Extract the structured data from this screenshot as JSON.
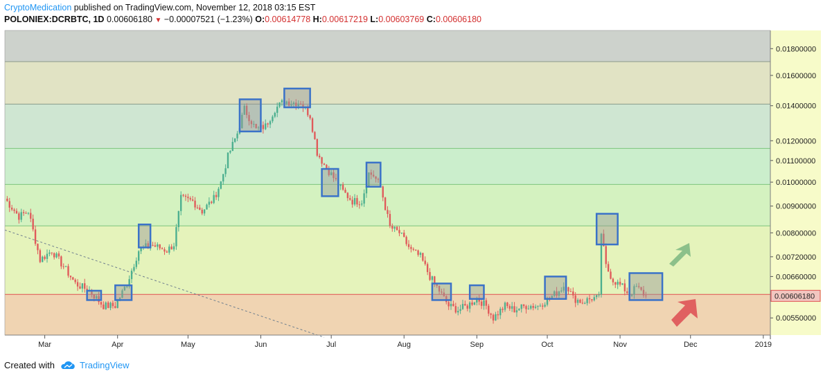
{
  "header": {
    "author": "CryptoMedication",
    "published_text": " published on TradingView.com, November 12, 2018 03:15 EST",
    "symbol": "POLONIEX:DCRBTC, 1D",
    "last": "0.00606180",
    "change": "−0.00007521 (−1.23%)",
    "o_label": "O:",
    "o_value": "0.00614778",
    "h_label": "H:",
    "h_value": "0.00617219",
    "l_label": "L:",
    "l_value": "0.00603769",
    "c_label": "C:",
    "c_value": "0.00606180"
  },
  "footer": {
    "created_with": "Created with",
    "brand": "TradingView"
  },
  "colors": {
    "up": "#4caf8f",
    "down": "#e05a5a",
    "box_stroke": "#3a72c8",
    "current_line": "#e05050",
    "arrow_up": "#8cc08a",
    "arrow_down": "#e06060",
    "axis_bg": "#f7fbc9"
  },
  "chart_data": {
    "type": "candlestick",
    "title": "",
    "y_scale": "log",
    "ylim": [
      0.0051,
      0.0195
    ],
    "y_ticks": [
      "0.01800000",
      "0.01600000",
      "0.01400000",
      "0.01200000",
      "0.01100000",
      "0.01000000",
      "0.00900000",
      "0.00800000",
      "0.00720000",
      "0.00660000",
      "0.00550000"
    ],
    "y_tick_values": [
      0.018,
      0.016,
      0.014,
      0.012,
      0.011,
      0.01,
      0.009,
      0.008,
      0.0072,
      0.0066,
      0.0055
    ],
    "x_ticks": [
      "Mar",
      "Apr",
      "May",
      "Jun",
      "Jul",
      "Aug",
      "Sep",
      "Oct",
      "Nov",
      "Dec",
      "2019"
    ],
    "x_tick_dates": [
      "2018-03-01",
      "2018-04-01",
      "2018-05-01",
      "2018-06-01",
      "2018-07-01",
      "2018-08-01",
      "2018-09-01",
      "2018-10-01",
      "2018-11-01",
      "2018-12-01",
      "2019-01-01"
    ],
    "x_range": [
      "2018-02-12",
      "2019-01-04"
    ],
    "current_price": 0.0060618,
    "current_price_label": "0.00606180",
    "fib_levels": [
      0.017,
      0.0141,
      0.0116,
      0.0099,
      0.00825,
      0.0061
    ],
    "zone_colors": [
      "#cdd2cc",
      "#e1e3c4",
      "#cfe6d2",
      "#cbeecc",
      "#d4f2c0",
      "#e5f3bb",
      "#f0d4b2"
    ],
    "trendline": {
      "start": [
        "2018-02-12",
        0.0081
      ],
      "end": [
        "2018-06-28",
        0.00505
      ]
    },
    "series": [
      {
        "ohlc_anchors": [
          [
            "2018-02-12",
            0.0093
          ],
          [
            "2018-02-18",
            0.0086
          ],
          [
            "2018-02-22",
            0.0088
          ],
          [
            "2018-02-27",
            0.0071
          ],
          [
            "2018-03-04",
            0.0074
          ],
          [
            "2018-03-10",
            0.0068
          ],
          [
            "2018-03-14",
            0.0064
          ],
          [
            "2018-03-20",
            0.0062
          ],
          [
            "2018-03-26",
            0.0058
          ],
          [
            "2018-03-31",
            0.0058
          ],
          [
            "2018-04-05",
            0.0064
          ],
          [
            "2018-04-10",
            0.0074
          ],
          [
            "2018-04-15",
            0.0076
          ],
          [
            "2018-04-22",
            0.0074
          ],
          [
            "2018-04-25",
            0.0076
          ],
          [
            "2018-04-28",
            0.0093
          ],
          [
            "2018-05-03",
            0.0092
          ],
          [
            "2018-05-07",
            0.0088
          ],
          [
            "2018-05-12",
            0.0093
          ],
          [
            "2018-05-15",
            0.01
          ],
          [
            "2018-05-18",
            0.0112
          ],
          [
            "2018-05-22",
            0.0124
          ],
          [
            "2018-05-25",
            0.0138
          ],
          [
            "2018-05-30",
            0.0126
          ],
          [
            "2018-06-03",
            0.0128
          ],
          [
            "2018-06-07",
            0.0138
          ],
          [
            "2018-06-11",
            0.0143
          ],
          [
            "2018-06-14",
            0.0142
          ],
          [
            "2018-06-18",
            0.0142
          ],
          [
            "2018-06-22",
            0.0134
          ],
          [
            "2018-06-25",
            0.0114
          ],
          [
            "2018-06-28",
            0.0108
          ],
          [
            "2018-07-02",
            0.0102
          ],
          [
            "2018-07-06",
            0.0096
          ],
          [
            "2018-07-10",
            0.0092
          ],
          [
            "2018-07-14",
            0.0092
          ],
          [
            "2018-07-17",
            0.0104
          ],
          [
            "2018-07-19",
            0.0103
          ],
          [
            "2018-07-22",
            0.0098
          ],
          [
            "2018-07-26",
            0.0082
          ],
          [
            "2018-07-30",
            0.008
          ],
          [
            "2018-08-04",
            0.0074
          ],
          [
            "2018-08-08",
            0.0072
          ],
          [
            "2018-08-12",
            0.0066
          ],
          [
            "2018-08-16",
            0.0062
          ],
          [
            "2018-08-20",
            0.0058
          ],
          [
            "2018-08-24",
            0.0057
          ],
          [
            "2018-08-28",
            0.0058
          ],
          [
            "2018-09-01",
            0.006
          ],
          [
            "2018-09-05",
            0.0058
          ],
          [
            "2018-09-08",
            0.0055
          ],
          [
            "2018-09-13",
            0.0058
          ],
          [
            "2018-09-17",
            0.0057
          ],
          [
            "2018-09-22",
            0.0058
          ],
          [
            "2018-09-27",
            0.0058
          ],
          [
            "2018-10-02",
            0.006
          ],
          [
            "2018-10-06",
            0.0062
          ],
          [
            "2018-10-09",
            0.0064
          ],
          [
            "2018-10-12",
            0.006
          ],
          [
            "2018-10-16",
            0.0059
          ],
          [
            "2018-10-20",
            0.006
          ],
          [
            "2018-10-23",
            0.006
          ],
          [
            "2018-10-24",
            0.008
          ],
          [
            "2018-10-26",
            0.0069
          ],
          [
            "2018-10-29",
            0.0065
          ],
          [
            "2018-11-02",
            0.0063
          ],
          [
            "2018-11-05",
            0.0061
          ],
          [
            "2018-11-08",
            0.0063
          ],
          [
            "2018-11-12",
            0.00606
          ]
        ]
      }
    ],
    "highlight_boxes": [
      {
        "from": "2018-03-19",
        "to": "2018-03-25",
        "low": 0.00595,
        "high": 0.0062
      },
      {
        "from": "2018-03-31",
        "to": "2018-04-07",
        "low": 0.00595,
        "high": 0.00635
      },
      {
        "from": "2018-04-10",
        "to": "2018-04-15",
        "low": 0.0075,
        "high": 0.0083
      },
      {
        "from": "2018-05-23",
        "to": "2018-06-01",
        "low": 0.0125,
        "high": 0.0144
      },
      {
        "from": "2018-06-11",
        "to": "2018-06-22",
        "low": 0.0139,
        "high": 0.0151
      },
      {
        "from": "2018-06-27",
        "to": "2018-07-04",
        "low": 0.0094,
        "high": 0.0106
      },
      {
        "from": "2018-07-16",
        "to": "2018-07-22",
        "low": 0.0098,
        "high": 0.0109
      },
      {
        "from": "2018-08-13",
        "to": "2018-08-21",
        "low": 0.00595,
        "high": 0.0064
      },
      {
        "from": "2018-08-29",
        "to": "2018-09-04",
        "low": 0.00598,
        "high": 0.00635
      },
      {
        "from": "2018-09-30",
        "to": "2018-10-09",
        "low": 0.00598,
        "high": 0.0066
      },
      {
        "from": "2018-10-22",
        "to": "2018-10-31",
        "low": 0.0076,
        "high": 0.0087
      },
      {
        "from": "2018-11-05",
        "to": "2018-11-19",
        "low": 0.00595,
        "high": 0.0067
      }
    ]
  }
}
